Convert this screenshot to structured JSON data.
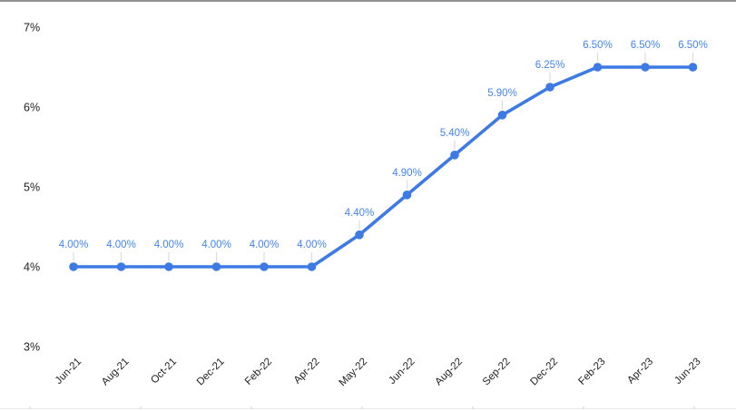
{
  "chart_data": {
    "type": "line",
    "title": "",
    "xlabel": "",
    "ylabel": "",
    "categories": [
      "Jun-21",
      "Aug-21",
      "Oct-21",
      "Dec-21",
      "Feb-22",
      "Apr-22",
      "May-22",
      "Jun-22",
      "Aug-22",
      "Sep-22",
      "Dec-22",
      "Feb-23",
      "Apr-23",
      "Jun-23"
    ],
    "values": [
      4.0,
      4.0,
      4.0,
      4.0,
      4.0,
      4.0,
      4.4,
      4.9,
      5.4,
      5.9,
      6.25,
      6.5,
      6.5,
      6.5
    ],
    "data_labels": [
      "4.00%",
      "4.00%",
      "4.00%",
      "4.00%",
      "4.00%",
      "4.00%",
      "4.40%",
      "4.90%",
      "5.40%",
      "5.90%",
      "6.25%",
      "6.50%",
      "6.50%",
      "6.50%"
    ],
    "y_ticks": [
      "7%",
      "6%",
      "5%",
      "4%",
      "3%"
    ],
    "y_tick_values": [
      7,
      6,
      5,
      4,
      3
    ],
    "ylim": [
      3,
      7
    ],
    "grid": false,
    "legend": "none",
    "series_color": "#3d7ae4",
    "data_label_color": "#4285f4",
    "axis_text_color": "#1f1f1f",
    "leader_line_color": "#dadce0",
    "baseline_color": "#e8eaed",
    "baseline_tick_color": "#c9cdd2",
    "top_border_color": "#919191"
  }
}
